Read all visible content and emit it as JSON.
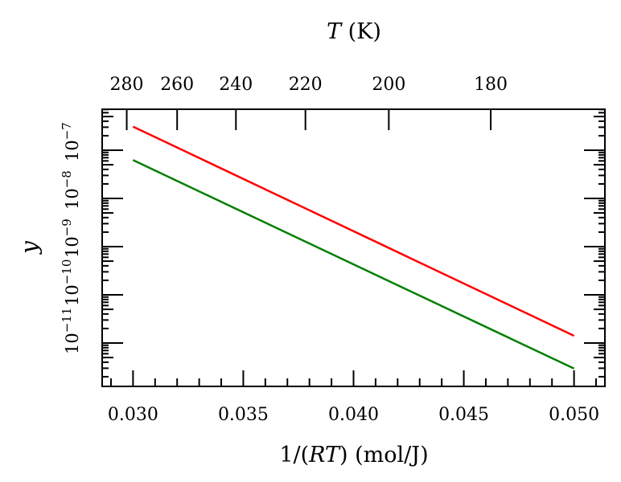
{
  "chart_data": {
    "type": "line",
    "title": "",
    "xlabel": "1/(RT) (mol/J)",
    "ylabel": "y",
    "top_xlabel": "T (K)",
    "xscale": "linear",
    "yscale": "log",
    "xlim": [
      0.0286,
      0.0514
    ],
    "ylim_log10": [
      -11.9,
      -6.15
    ],
    "grid": false,
    "x_ticks": [
      "0.030",
      "0.035",
      "0.040",
      "0.045",
      "0.050"
    ],
    "x_tick_values": [
      0.03,
      0.035,
      0.04,
      0.045,
      0.05
    ],
    "y_tick_exponents": [
      -11,
      -10,
      -9,
      -8,
      -7
    ],
    "y_tick_labels": [
      "10",
      "10",
      "10",
      "10",
      "10"
    ],
    "y_tick_sup": [
      "−11",
      "−10",
      "−9",
      "−8",
      "−7"
    ],
    "top_ticks_T": [
      "280",
      "260",
      "240",
      "220",
      "200",
      "180"
    ],
    "top_tick_T_values": [
      280,
      260,
      240,
      220,
      200,
      180
    ],
    "top_axis_relation_k": 8.32,
    "series": [
      {
        "name": "red",
        "color": "#ff0000",
        "x": [
          0.03,
          0.05
        ],
        "log10_y": [
          -6.51,
          -10.85
        ]
      },
      {
        "name": "green",
        "color": "#008000",
        "x": [
          0.03,
          0.05
        ],
        "log10_y": [
          -7.205,
          -11.53
        ]
      }
    ]
  }
}
